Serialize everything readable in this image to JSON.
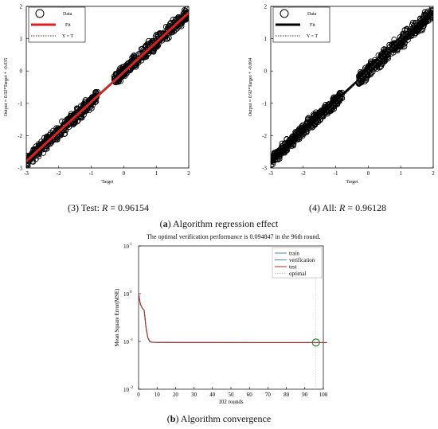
{
  "regression": {
    "subcaption_prefix": "(",
    "subcaption_letter": "a",
    "subcaption_rest": ") Algorithm regression effect",
    "legend": [
      "Data",
      "Fit",
      "Y = T"
    ],
    "panels": [
      {
        "caption_lead": "(3) Test: ",
        "caption_var": "R",
        "caption_val": " = 0.96154",
        "ylabel": "Output ≈ 0.92*Target + -0.035",
        "xlabel": "Target",
        "fit_color": "#e02020"
      },
      {
        "caption_lead": "(4) All: ",
        "caption_var": "R",
        "caption_val": " = 0.96128",
        "ylabel": "Output ≈ 0.92*Target + -0.004",
        "xlabel": "Target",
        "fit_color": "#000000"
      }
    ]
  },
  "convergence": {
    "title": "The optimal verification performance is 0.094847 in the 96th round.",
    "subcaption_prefix": "(",
    "subcaption_letter": "b",
    "subcaption_rest": ") Algorithm convergence",
    "ylabel": "Mean Square Error(MSE)",
    "xlabel": "102 rounds"
  },
  "chart_data": [
    {
      "type": "scatter",
      "title": "(3) Test: R = 0.96154",
      "xlabel": "Target",
      "ylabel": "Output ≈ 0.92*Target + -0.035",
      "xlim": [
        -3,
        2
      ],
      "ylim": [
        -3,
        2
      ],
      "x_ticks": [
        -3,
        -2,
        -1,
        0,
        1,
        2
      ],
      "y_ticks": [
        -3,
        -2,
        -1,
        0,
        1,
        2
      ],
      "legend": "top-left",
      "colors": {
        "data": "#000000",
        "fit": "#e02020",
        "yt": "#555555"
      },
      "clusters": [
        {
          "x_range": [
            -3.0,
            -0.8
          ],
          "slope": 0.92,
          "intercept": -0.035,
          "spread": 0.28
        },
        {
          "x_range": [
            -0.3,
            2.0
          ],
          "slope": 0.92,
          "intercept": -0.035,
          "spread": 0.3
        }
      ],
      "fit": {
        "slope": 0.92,
        "intercept": -0.035
      }
    },
    {
      "type": "scatter",
      "title": "(4) All: R = 0.96128",
      "xlabel": "Target",
      "ylabel": "Output ≈ 0.92*Target + -0.004",
      "xlim": [
        -3,
        2
      ],
      "ylim": [
        -3,
        2
      ],
      "x_ticks": [
        -3,
        -2,
        -1,
        0,
        1,
        2
      ],
      "y_ticks": [
        -3,
        -2,
        -1,
        0,
        1,
        2
      ],
      "legend": "top-left",
      "colors": {
        "data": "#000000",
        "fit": "#000000",
        "yt": "#555555"
      },
      "clusters": [
        {
          "x_range": [
            -3.0,
            -0.8
          ],
          "slope": 0.92,
          "intercept": -0.004,
          "spread": 0.28
        },
        {
          "x_range": [
            -0.3,
            2.0
          ],
          "slope": 0.92,
          "intercept": -0.004,
          "spread": 0.3
        }
      ],
      "fit": {
        "slope": 0.92,
        "intercept": -0.004
      }
    },
    {
      "type": "line",
      "title": "The optimal verification performance is 0.094847 in the 96th round.",
      "xlabel": "102 rounds",
      "ylabel": "Mean Square Error(MSE)",
      "xlim": [
        0,
        100
      ],
      "ylim": [
        0.01,
        10
      ],
      "yscale": "log",
      "x_ticks": [
        0,
        10,
        20,
        30,
        40,
        50,
        60,
        70,
        80,
        90,
        100
      ],
      "y_ticks": [
        {
          "value": 0.01,
          "base": "10",
          "exp": "-2"
        },
        {
          "value": 0.1,
          "base": "10",
          "exp": "-1"
        },
        {
          "value": 1,
          "base": "10",
          "exp": "0"
        },
        {
          "value": 10,
          "base": "10",
          "exp": "1"
        }
      ],
      "legend": "top-right",
      "series": [
        {
          "name": "train",
          "color": "#5a7fc0",
          "x": [
            0,
            1,
            2,
            3,
            4,
            5,
            6,
            7,
            8,
            10,
            20,
            40,
            60,
            80,
            96,
            102
          ],
          "y": [
            1.0,
            0.6,
            0.5,
            0.45,
            0.2,
            0.12,
            0.1,
            0.097,
            0.096,
            0.0955,
            0.095,
            0.095,
            0.0948,
            0.0948,
            0.0948,
            0.0948
          ]
        },
        {
          "name": "verification",
          "color": "#3aa38a",
          "x": [
            0,
            1,
            2,
            3,
            4,
            5,
            6,
            7,
            8,
            10,
            20,
            40,
            60,
            80,
            96,
            102
          ],
          "y": [
            1.0,
            0.6,
            0.5,
            0.45,
            0.2,
            0.12,
            0.1,
            0.097,
            0.096,
            0.0955,
            0.095,
            0.095,
            0.0948,
            0.0948,
            0.0948,
            0.0948
          ]
        },
        {
          "name": "test",
          "color": "#b03030",
          "x": [
            0,
            1,
            2,
            3,
            4,
            5,
            6,
            7,
            8,
            10,
            20,
            40,
            60,
            80,
            96,
            102
          ],
          "y": [
            1.0,
            0.6,
            0.5,
            0.45,
            0.2,
            0.12,
            0.1,
            0.097,
            0.096,
            0.0955,
            0.095,
            0.095,
            0.0948,
            0.0948,
            0.0948,
            0.0948
          ]
        },
        {
          "name": "optimal",
          "color": "#c8c8c8",
          "x": [
            96,
            96
          ],
          "y": [
            0.01,
            10
          ]
        }
      ],
      "best": {
        "x": 96,
        "y": 0.094847,
        "color": "#2a8a2a"
      }
    }
  ]
}
